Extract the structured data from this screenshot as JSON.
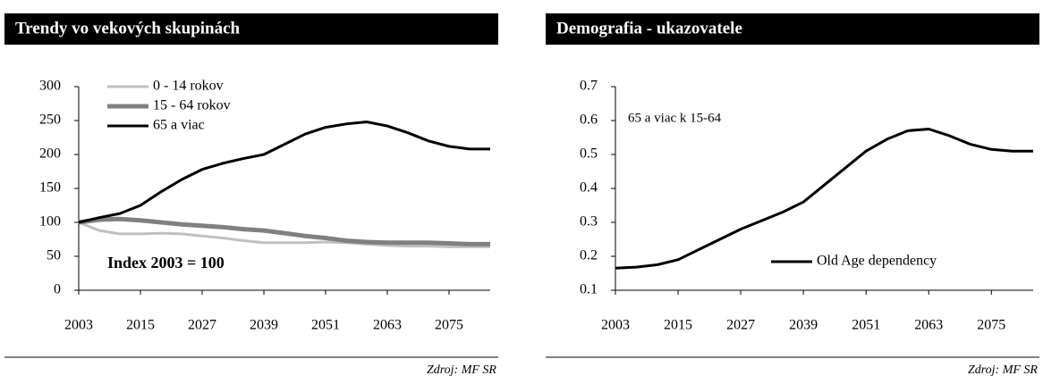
{
  "chart_data": [
    {
      "type": "line",
      "title": "Trendy vo vekových skupinách",
      "source": "Zdroj: MF SR",
      "annotation": "Index 2003 = 100",
      "legend": "upper left",
      "x": [
        2003,
        2007,
        2011,
        2015,
        2019,
        2023,
        2027,
        2031,
        2035,
        2039,
        2043,
        2047,
        2051,
        2055,
        2059,
        2063,
        2067,
        2071,
        2075,
        2079,
        2083
      ],
      "series": [
        {
          "name": "0 - 14 rokov",
          "color": "#c0c0c0",
          "values": [
            100,
            88,
            83,
            83,
            84,
            83,
            80,
            77,
            73,
            70,
            70,
            70,
            71,
            70,
            68,
            66,
            65,
            65,
            64,
            64,
            64
          ]
        },
        {
          "name": "15 - 64 rokov",
          "color": "#808080",
          "values": [
            100,
            104,
            105,
            103,
            100,
            97,
            95,
            93,
            90,
            88,
            84,
            80,
            77,
            73,
            71,
            70,
            70,
            70,
            69,
            68,
            68
          ]
        },
        {
          "name": "65 a viac",
          "color": "#000000",
          "values": [
            100,
            107,
            113,
            125,
            145,
            163,
            178,
            187,
            194,
            200,
            215,
            230,
            240,
            245,
            248,
            242,
            232,
            220,
            212,
            208,
            208
          ]
        }
      ],
      "xlim": [
        2003,
        2083
      ],
      "xticks": [
        2003,
        2015,
        2027,
        2039,
        2051,
        2063,
        2075
      ],
      "ylim": [
        0,
        300
      ],
      "yticks": [
        0,
        50,
        100,
        150,
        200,
        250,
        300
      ]
    },
    {
      "type": "line",
      "title": "Demografia - ukazovatele",
      "source": "Zdroj: MF SR",
      "annotation": "65 a viac k 15-64",
      "legend": "lower right",
      "x": [
        2003,
        2007,
        2011,
        2015,
        2019,
        2023,
        2027,
        2031,
        2035,
        2039,
        2043,
        2047,
        2051,
        2055,
        2059,
        2063,
        2067,
        2071,
        2075,
        2079,
        2083
      ],
      "series": [
        {
          "name": "Old Age dependency",
          "color": "#000000",
          "values": [
            0.165,
            0.168,
            0.175,
            0.19,
            0.22,
            0.25,
            0.28,
            0.305,
            0.33,
            0.36,
            0.41,
            0.46,
            0.51,
            0.545,
            0.57,
            0.575,
            0.555,
            0.53,
            0.515,
            0.51,
            0.51
          ]
        }
      ],
      "xlim": [
        2003,
        2083
      ],
      "xticks": [
        2003,
        2015,
        2027,
        2039,
        2051,
        2063,
        2075
      ],
      "ylim": [
        0.1,
        0.7
      ],
      "yticks": [
        0.1,
        0.2,
        0.3,
        0.4,
        0.5,
        0.6,
        0.7
      ]
    }
  ]
}
